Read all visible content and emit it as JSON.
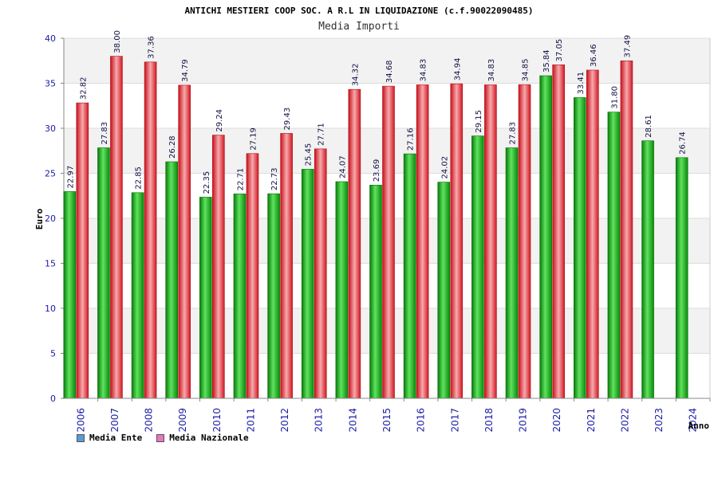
{
  "chart_data": {
    "type": "bar",
    "title": "ANTICHI MESTIERI COOP SOC. A R.L IN LIQUIDAZIONE (c.f.90022090485)",
    "subtitle": "Media Importi",
    "ylabel": "Euro",
    "xlabel": "Anno",
    "ylim": [
      0,
      40
    ],
    "yticks": [
      "0",
      "5",
      "10",
      "15",
      "20",
      "25",
      "30",
      "35",
      "40"
    ],
    "grid": true,
    "categories": [
      "2006",
      "2007",
      "2008",
      "2009",
      "2010",
      "2011",
      "2012",
      "2013",
      "2014",
      "2015",
      "2016",
      "2017",
      "2018",
      "2019",
      "2020",
      "2021",
      "2022",
      "2023",
      "2024"
    ],
    "series": [
      {
        "name": "Media Ente",
        "color": "#1fb51f",
        "legend_color": "#5b9bd5",
        "values": [
          22.97,
          27.83,
          22.85,
          26.28,
          22.35,
          22.71,
          22.73,
          25.45,
          24.07,
          23.69,
          27.16,
          24.02,
          29.15,
          27.83,
          35.84,
          33.41,
          31.8,
          28.61,
          26.74
        ],
        "labels": [
          "22.97",
          "27.83",
          "22.85",
          "26.28",
          "22.35",
          "22.71",
          "22.73",
          "25.45",
          "24.07",
          "23.69",
          "27.16",
          "24.02",
          "29.15",
          "27.83",
          "35.84",
          "33.41",
          "31.80",
          "28.61",
          "26.74"
        ]
      },
      {
        "name": "Media Nazionale",
        "color": "#e8323a",
        "legend_color": "#e377c2",
        "values": [
          32.82,
          38.0,
          37.36,
          34.79,
          29.24,
          27.19,
          29.43,
          27.71,
          34.32,
          34.68,
          34.83,
          34.94,
          34.83,
          34.85,
          37.05,
          36.46,
          37.49,
          null,
          null
        ],
        "labels": [
          "32.82",
          "38.00",
          "37.36",
          "34.79",
          "29.24",
          "27.19",
          "29.43",
          "27.71",
          "34.32",
          "34.68",
          "34.83",
          "34.94",
          "34.83",
          "34.85",
          "37.05",
          "36.46",
          "37.49",
          "",
          ""
        ]
      }
    ],
    "legend_position": "bottom-left"
  }
}
